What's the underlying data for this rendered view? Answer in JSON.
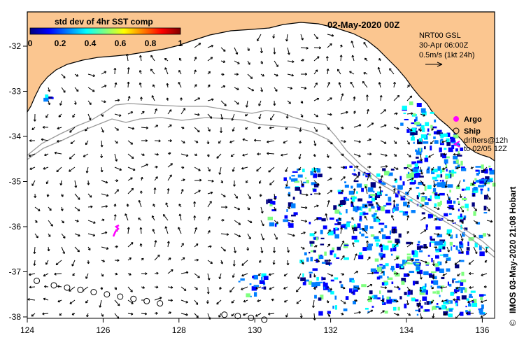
{
  "title": "02-May-2020 00Z",
  "colorbar": {
    "label": "std dev of 4hr SST comp",
    "ticks": [
      "0",
      "0.2",
      "0.4",
      "0.6",
      "0.8",
      "1"
    ],
    "colors": [
      "#00007f",
      "#0000ff",
      "#007fff",
      "#00ffff",
      "#7fff7f",
      "#ffff00",
      "#ff7f00",
      "#ff0000",
      "#7f0000"
    ]
  },
  "info": {
    "line1": "NRT00 GSL",
    "line2": "30-Apr 06:00Z",
    "line3": "0.5m/s (1kt 24h)"
  },
  "legend": {
    "argo": "Argo",
    "ship": "Ship",
    "drifters_line1": "drifters@12h",
    "drifters_line2": "to 02/05 12Z"
  },
  "credit": "IMOS 03-May-2020 21:08 Hobart",
  "copyright": "©",
  "axes": {
    "x_ticks": [
      "124",
      "126",
      "128",
      "130",
      "132",
      "134",
      "136"
    ],
    "y_ticks": [
      "-32",
      "-33",
      "-34",
      "-35",
      "-36",
      "-37",
      "-38"
    ]
  },
  "colors": {
    "land": "#fbc690",
    "argo": "#ff00ff",
    "arrow": "#000000",
    "contour": "#9a9a9a"
  },
  "ships": [
    [
      124.25,
      -37.2
    ],
    [
      124.7,
      -37.3
    ],
    [
      125.05,
      -37.35
    ],
    [
      125.4,
      -37.4
    ],
    [
      125.75,
      -37.45
    ],
    [
      126.1,
      -37.5
    ],
    [
      126.45,
      -37.55
    ],
    [
      126.8,
      -37.6
    ],
    [
      127.15,
      -37.65
    ],
    [
      127.5,
      -37.7
    ],
    [
      129.2,
      -37.95
    ],
    [
      129.55,
      -37.98
    ],
    [
      129.9,
      -38.02
    ],
    [
      130.25,
      -38.06
    ]
  ]
}
